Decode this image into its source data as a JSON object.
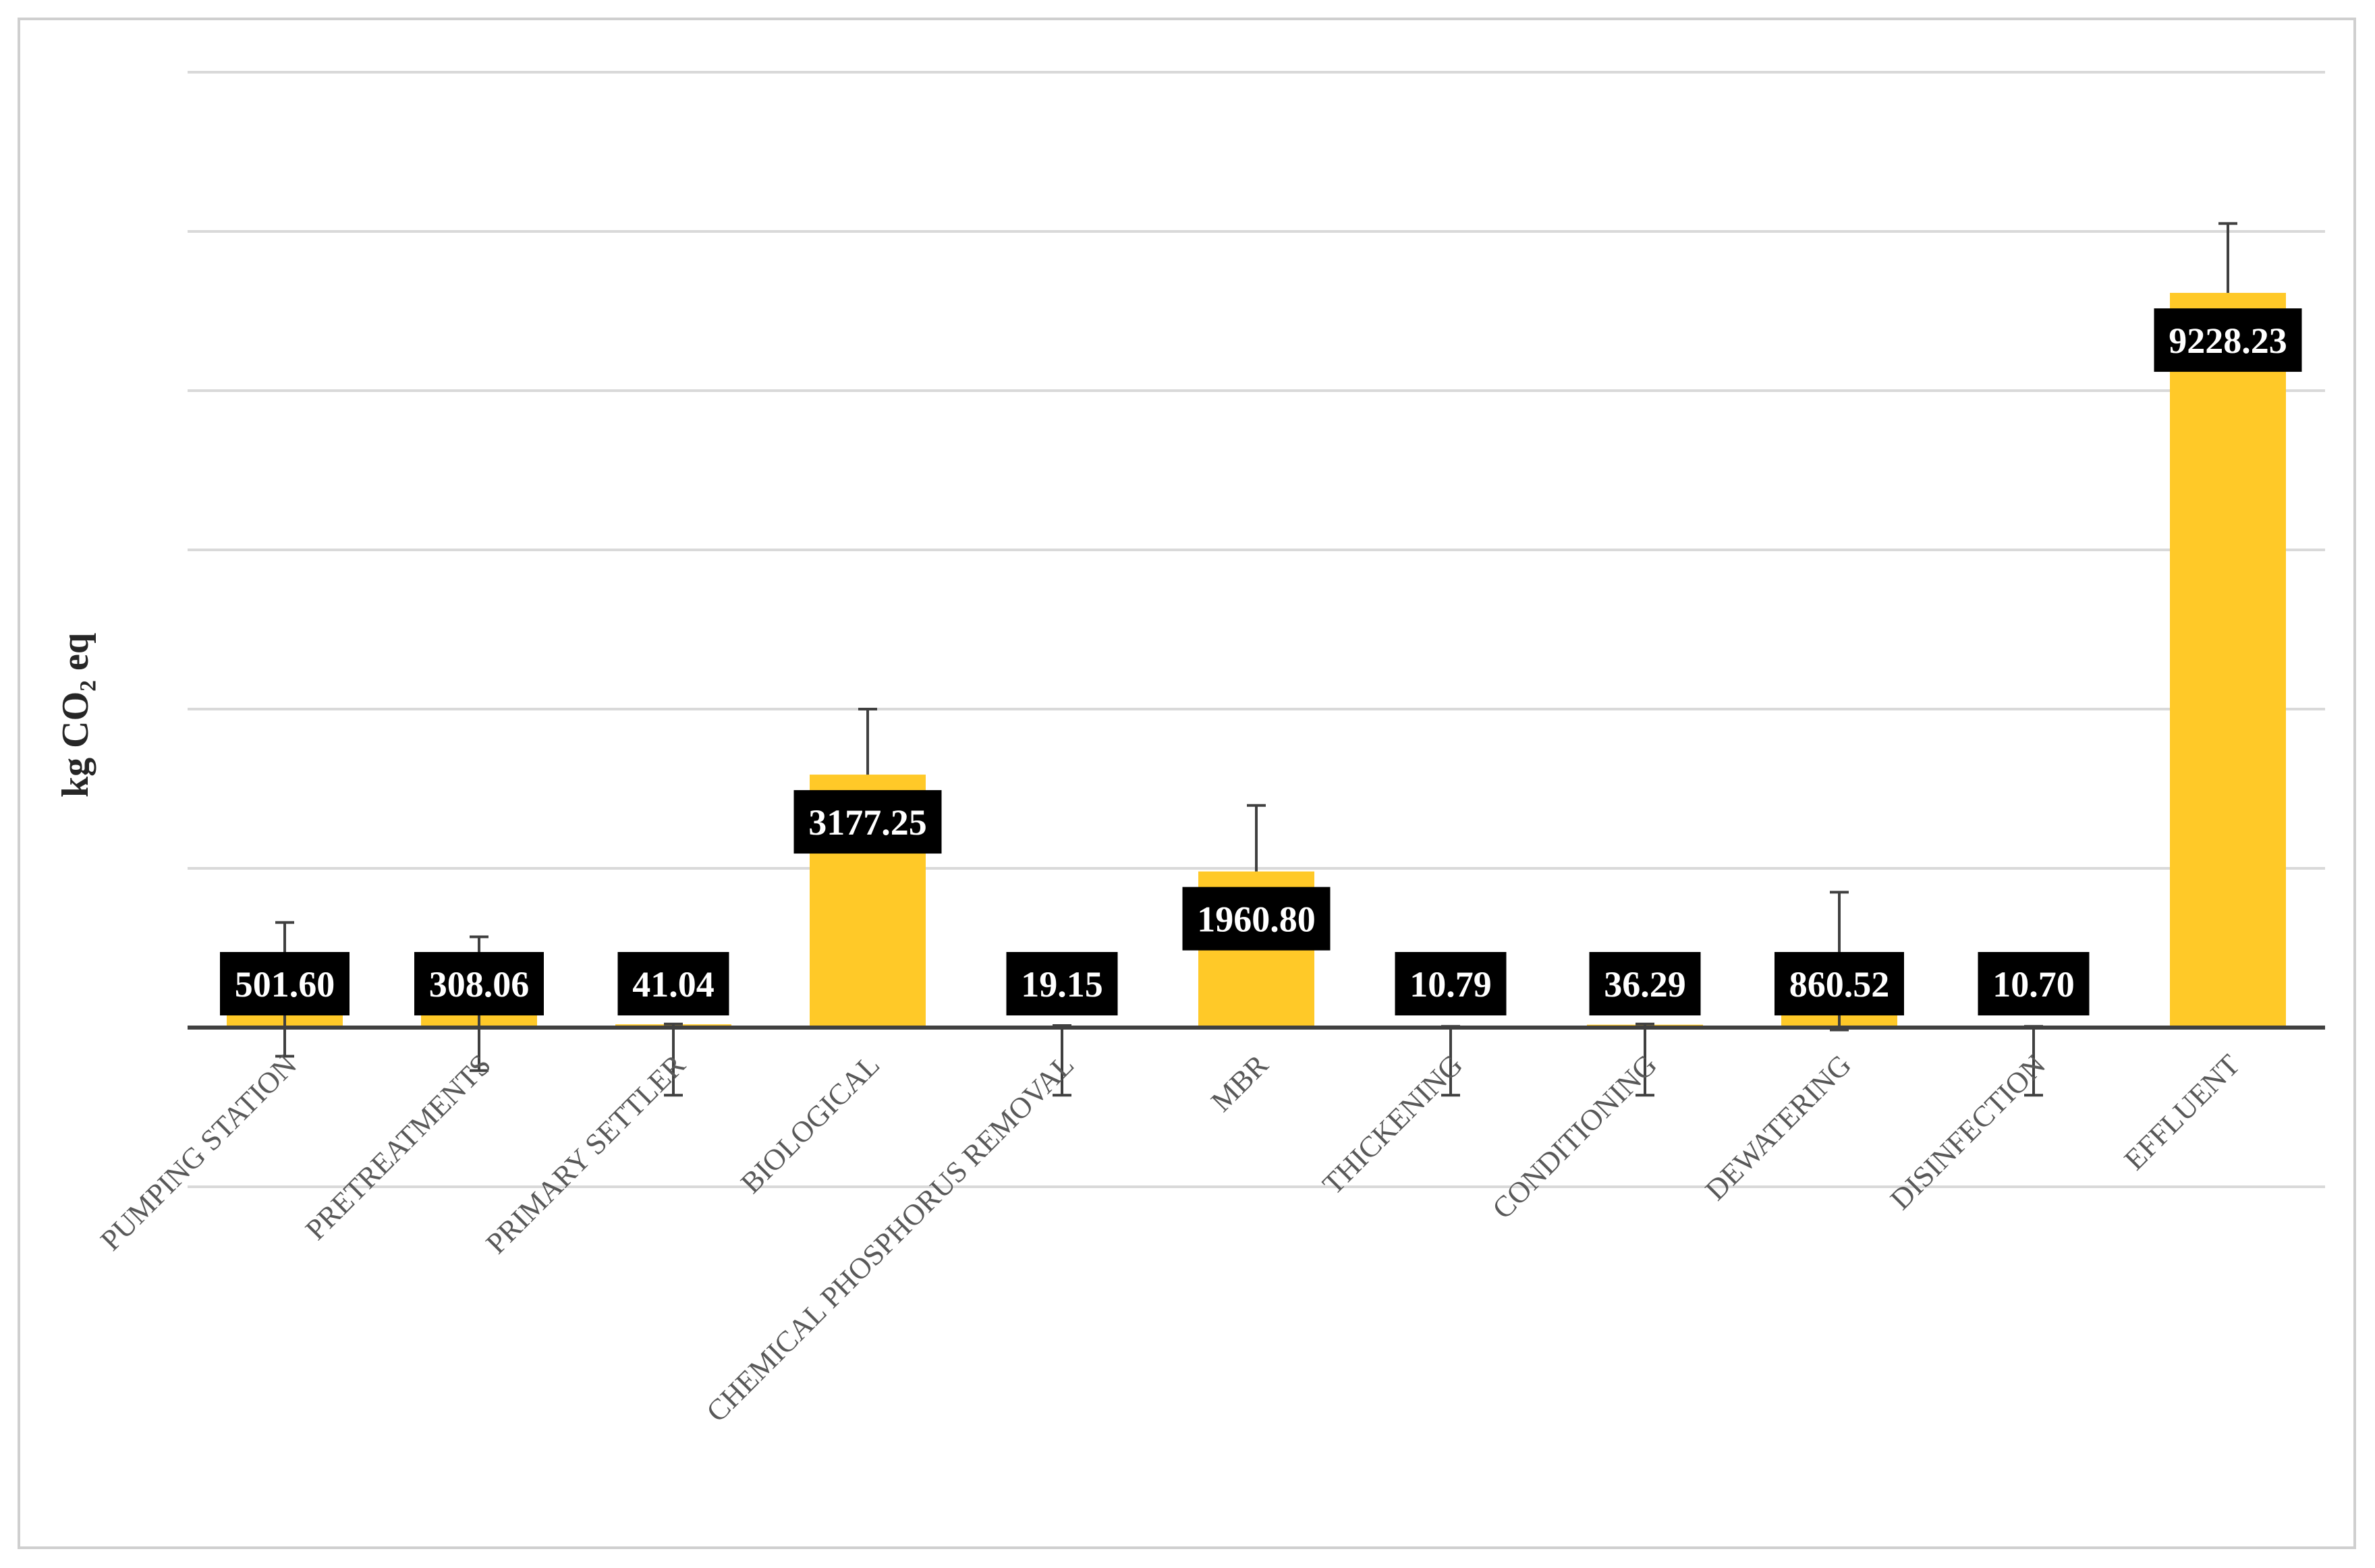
{
  "chart_data": {
    "type": "bar",
    "ylabel": "kg CO₂ eq",
    "categories": [
      "PUMPING STATION",
      "PRETREATMENTS",
      "PRIMARY SETTLER",
      "BIOLOGICAL",
      "CHEMICAL PHOSPHORUS REMOVAL",
      "MBR",
      "THICKENING",
      "CONDITIONING",
      "DEWATERING",
      "DISINFECTION",
      "EFFLUENT"
    ],
    "values": [
      501.6,
      308.06,
      41.04,
      3177.25,
      19.15,
      1960.8,
      10.79,
      36.29,
      860.52,
      10.7,
      9228.23
    ],
    "value_labels": [
      "501.60",
      "308.06",
      "41.04",
      "3177.25",
      "19.15",
      "1960.80",
      "10.79",
      "36.29",
      "860.52",
      "10.70",
      "9228.23"
    ],
    "error_high": [
      1320,
      1140,
      45,
      4000,
      25,
      2790,
      15,
      45,
      1700,
      15,
      10100
    ],
    "error_low": [
      -360,
      -540,
      -850,
      3177.25,
      -850,
      1960.8,
      -850,
      -850,
      -30,
      -850,
      9228.23
    ],
    "ylim": [
      -2000,
      12000
    ],
    "gridlines": [
      -2000,
      2000,
      4000,
      6000,
      8000,
      10000,
      12000
    ],
    "grid": true,
    "bar_color": "#FFC928",
    "label_box_color": "#000000",
    "error_bar_color": "#404040"
  }
}
